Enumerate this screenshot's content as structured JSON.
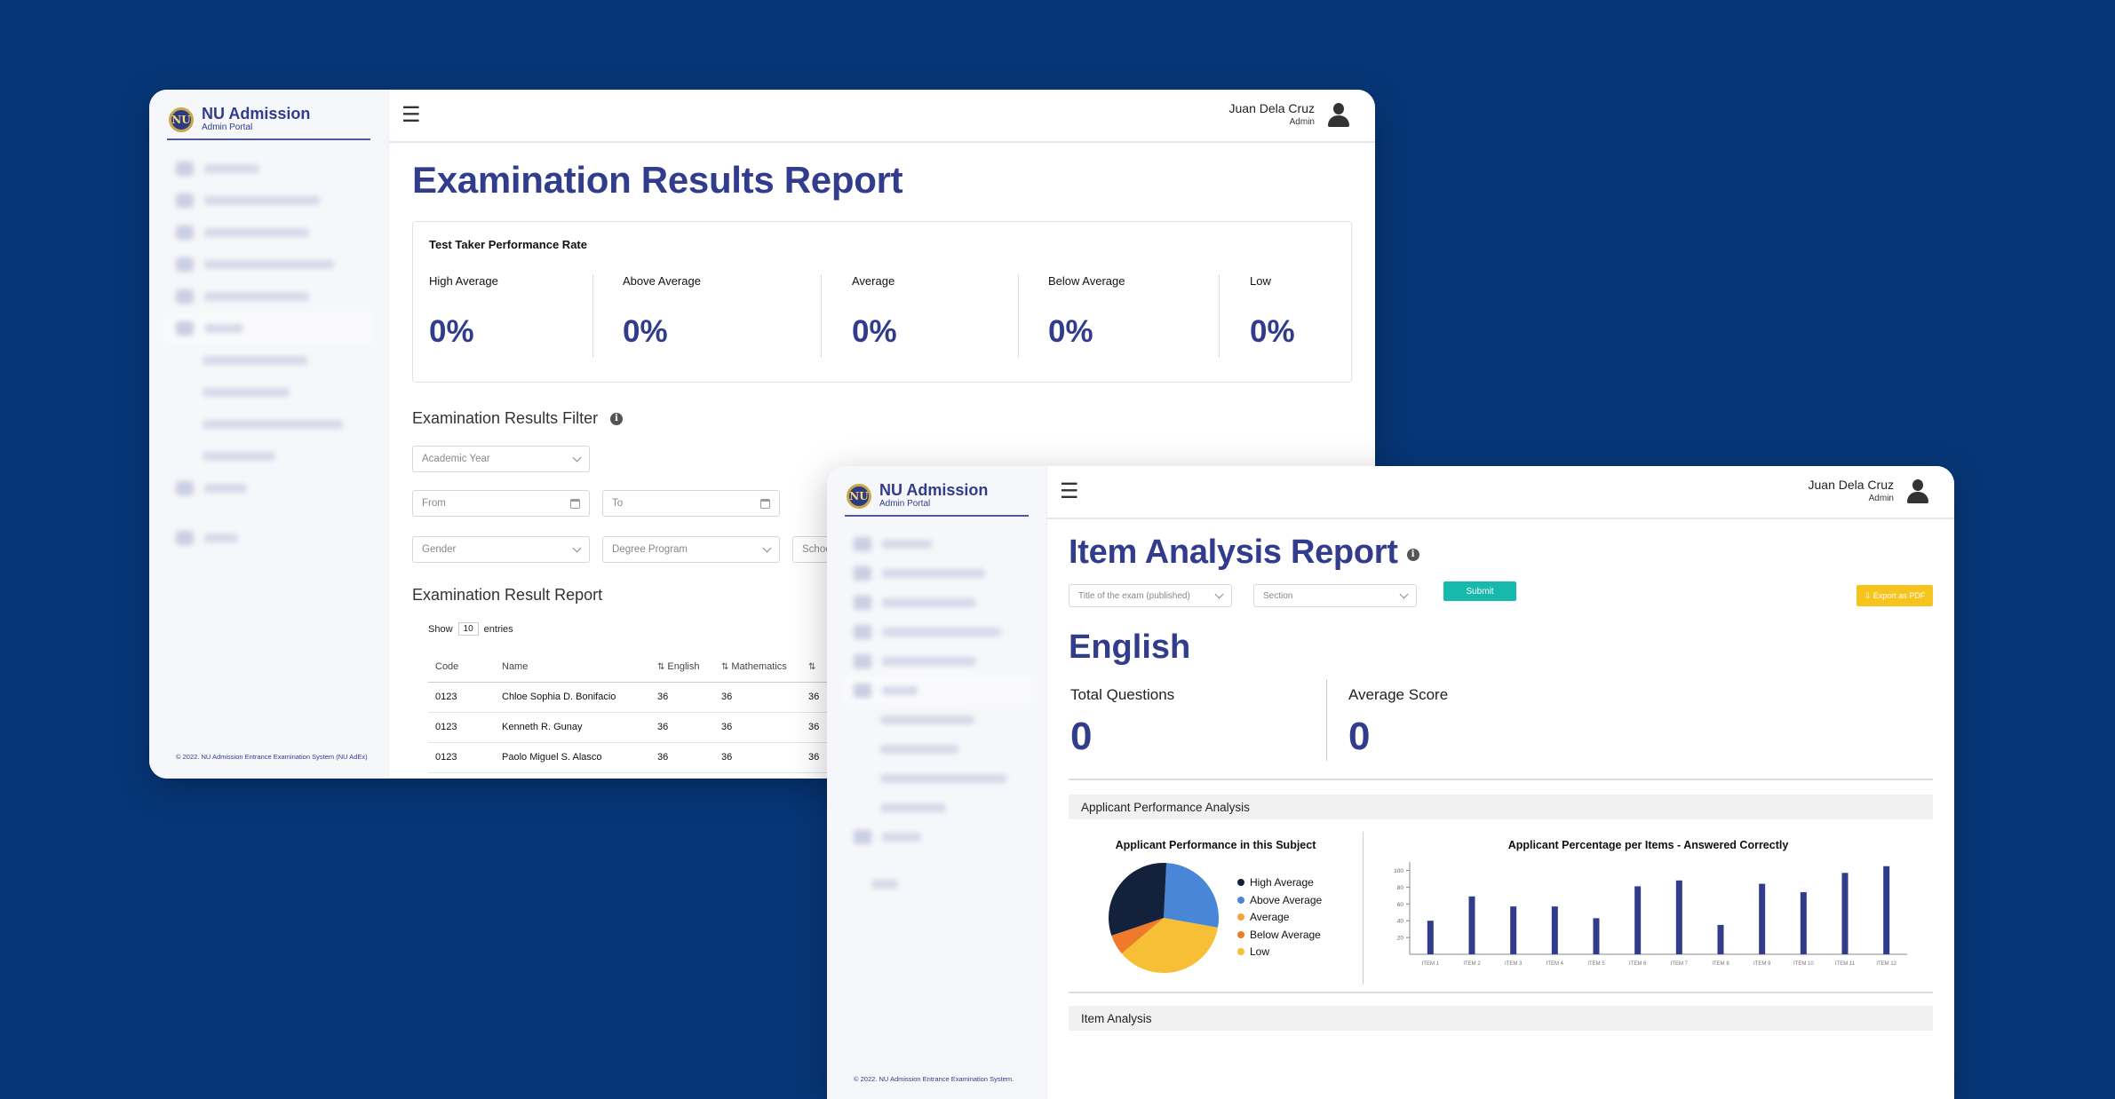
{
  "brand": {
    "title": "NU Admission",
    "subtitle": "Admin Portal",
    "logo_text": "NU"
  },
  "user": {
    "name": "Juan Dela Cruz",
    "role": "Admin"
  },
  "results_window": {
    "page_title": "Examination Results Report",
    "performance_card": {
      "title": "Test Taker Performance Rate",
      "rates": [
        {
          "label": "High Average",
          "value": "0%"
        },
        {
          "label": "Above Average",
          "value": "0%"
        },
        {
          "label": "Average",
          "value": "0%"
        },
        {
          "label": "Below Average",
          "value": "0%"
        },
        {
          "label": "Low",
          "value": "0%"
        }
      ]
    },
    "filter": {
      "title": "Examination Results Filter",
      "academic_year": "Academic Year",
      "from": "From",
      "to": "To",
      "gender": "Gender",
      "degree_program": "Degree Program",
      "school": "Schoo"
    },
    "report": {
      "title": "Examination Result Report",
      "show_label": "Show",
      "show_value": "10",
      "entries_label": "entries",
      "columns": [
        "Code",
        "Name",
        "English",
        "Mathematics"
      ],
      "rows": [
        {
          "code": "0123",
          "name": "Chloe Sophia D. Bonifacio",
          "english": "36",
          "mathematics": "36",
          "next": "36"
        },
        {
          "code": "0123",
          "name": "Kenneth R. Gunay",
          "english": "36",
          "mathematics": "36",
          "next": "36"
        },
        {
          "code": "0123",
          "name": "Paolo Miguel S. Alasco",
          "english": "36",
          "mathematics": "36",
          "next": "36"
        }
      ]
    },
    "footer": "© 2022. NU Admission Entrance Examination System (NU AdEx)"
  },
  "item_window": {
    "page_title": "Item Analysis Report",
    "exam_select": "Title of the exam (published)",
    "section_select": "Section",
    "submit_label": "Submit",
    "export_label": "⇩ Export as PDF",
    "subject": "English",
    "total_questions_label": "Total Questions",
    "total_questions_value": "0",
    "average_score_label": "Average Score",
    "average_score_value": "0",
    "performance_section": "Applicant Performance Analysis",
    "item_section": "Item Analysis",
    "footer": "© 2022. NU Admission Entrance Examination System."
  },
  "chart_data": [
    {
      "type": "pie",
      "title": "Applicant Performance in this Subject",
      "categories": [
        "High Average",
        "Above Average",
        "Average",
        "Below Average",
        "Low"
      ],
      "values": [
        31,
        27,
        0,
        6,
        36
      ],
      "colors": [
        "#14213d",
        "#4a86d8",
        "#f4a63a",
        "#ee7a2a",
        "#f6bf35"
      ],
      "legend": "right"
    },
    {
      "type": "bar",
      "title": "Applicant Percentage per Items - Answered Correctly",
      "categories": [
        "ITEM 1",
        "ITEM 2",
        "ITEM 3",
        "ITEM 4",
        "ITEM 5",
        "ITEM 6",
        "ITEM 7",
        "ITEM 8",
        "ITEM 9",
        "ITEM 10",
        "ITEM 11",
        "ITEM 12"
      ],
      "values": [
        40,
        69,
        57,
        57,
        43,
        81,
        88,
        35,
        84,
        74,
        97,
        105
      ],
      "yticks": [
        "20",
        "40",
        "60",
        "80",
        "100"
      ],
      "ylim": [
        0,
        110
      ],
      "color": "#313c8c"
    }
  ]
}
